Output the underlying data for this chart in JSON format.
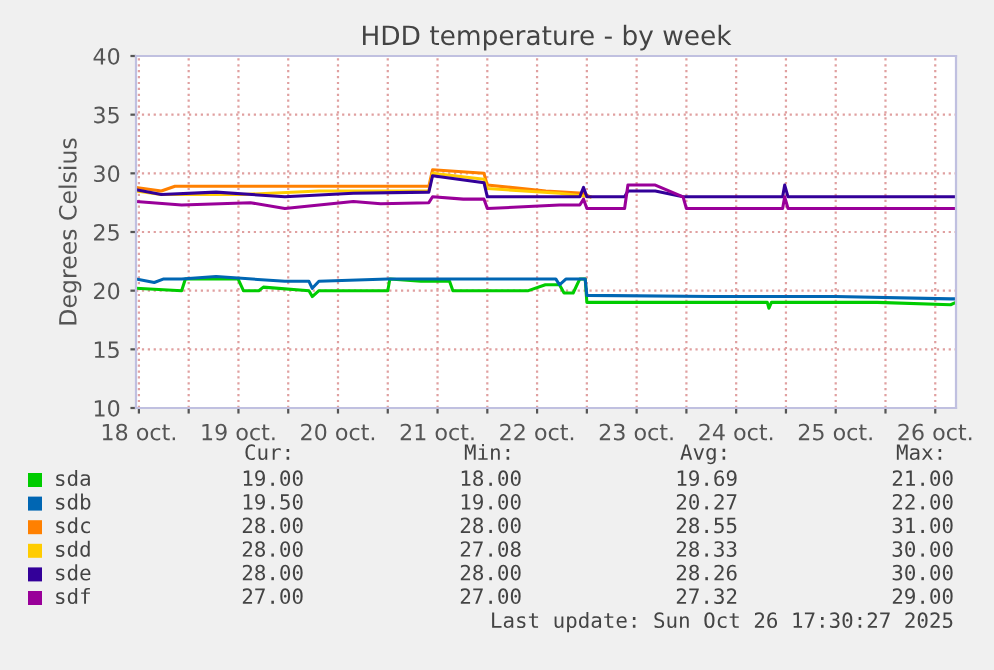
{
  "chart_data": {
    "type": "line",
    "title": "HDD temperature - by week",
    "ylabel": "Degrees Celsius",
    "xlim": [
      "2025-10-18T11:18",
      "2025-10-26T17:00"
    ],
    "xticks": [
      {
        "value": "2025-10-18T12:00",
        "label": "18 oct."
      },
      {
        "value": "2025-10-19T00:00",
        "label": null
      },
      {
        "value": "2025-10-19T12:00",
        "label": "19 oct."
      },
      {
        "value": "2025-10-20T00:00",
        "label": null
      },
      {
        "value": "2025-10-20T12:00",
        "label": "20 oct."
      },
      {
        "value": "2025-10-21T00:00",
        "label": null
      },
      {
        "value": "2025-10-21T12:00",
        "label": "21 oct."
      },
      {
        "value": "2025-10-22T00:00",
        "label": null
      },
      {
        "value": "2025-10-22T12:00",
        "label": "22 oct."
      },
      {
        "value": "2025-10-23T00:00",
        "label": null
      },
      {
        "value": "2025-10-23T12:00",
        "label": "23 oct."
      },
      {
        "value": "2025-10-24T00:00",
        "label": null
      },
      {
        "value": "2025-10-24T12:00",
        "label": "24 oct."
      },
      {
        "value": "2025-10-25T00:00",
        "label": null
      },
      {
        "value": "2025-10-25T12:00",
        "label": "25 oct."
      },
      {
        "value": "2025-10-26T00:00",
        "label": null
      },
      {
        "value": "2025-10-26T12:00",
        "label": "26 oct."
      }
    ],
    "ylim": [
      10,
      40
    ],
    "yticks": [
      10,
      15,
      20,
      25,
      30,
      35,
      40
    ],
    "grid": true,
    "legend": "bottom",
    "series": [
      {
        "name": "sda",
        "color": "#00cc00",
        "x": [
          "2025-10-18T11:18",
          "2025-10-18T22:18",
          "2025-10-18T23:12",
          "2025-10-19T11:54",
          "2025-10-19T13:12",
          "2025-10-19T16:54",
          "2025-10-19T18:00",
          "2025-10-20T05:00",
          "2025-10-20T05:48",
          "2025-10-20T07:24",
          "2025-10-21T00:00",
          "2025-10-21T00:30",
          "2025-10-21T08:00",
          "2025-10-21T14:54",
          "2025-10-21T15:42",
          "2025-10-22T09:54",
          "2025-10-22T14:00",
          "2025-10-22T17:24",
          "2025-10-22T18:30",
          "2025-10-22T20:42",
          "2025-10-22T22:18",
          "2025-10-22T23:36",
          "2025-10-23T00:00",
          "2025-10-24T06:00",
          "2025-10-24T19:30",
          "2025-10-24T19:54",
          "2025-10-24T20:30",
          "2025-10-25T22:00",
          "2025-10-26T15:42",
          "2025-10-26T17:00"
        ],
        "values": [
          20.2,
          20.0,
          21.0,
          21.0,
          20.0,
          20.0,
          20.3,
          20.0,
          19.5,
          20.0,
          20.0,
          21.0,
          20.8,
          20.8,
          20.0,
          20.0,
          20.5,
          20.5,
          19.8,
          19.8,
          21.0,
          21.0,
          19.0,
          19.0,
          19.0,
          18.5,
          19.0,
          19.0,
          18.8,
          19.0
        ]
      },
      {
        "name": "sdb",
        "color": "#0066b3",
        "x": [
          "2025-10-18T11:18",
          "2025-10-18T15:42",
          "2025-10-18T18:00",
          "2025-10-18T22:18",
          "2025-10-19T06:36",
          "2025-10-19T23:12",
          "2025-10-20T05:00",
          "2025-10-20T05:48",
          "2025-10-20T07:24",
          "2025-10-21T00:00",
          "2025-10-22T16:30",
          "2025-10-22T17:24",
          "2025-10-22T19:00",
          "2025-10-22T23:36",
          "2025-10-23T00:00",
          "2025-10-24T06:00",
          "2025-10-25T12:00",
          "2025-10-26T15:42",
          "2025-10-26T17:00"
        ],
        "values": [
          21.0,
          20.7,
          21.0,
          21.0,
          21.2,
          20.8,
          20.8,
          20.2,
          20.8,
          21.0,
          21.0,
          20.5,
          21.0,
          21.0,
          19.6,
          19.5,
          19.5,
          19.3,
          19.3
        ]
      },
      {
        "name": "sdc",
        "color": "#ff8000",
        "x": [
          "2025-10-18T11:18",
          "2025-10-18T17:24",
          "2025-10-18T20:42",
          "2025-10-21T09:54",
          "2025-10-21T10:48",
          "2025-10-21T23:12",
          "2025-10-22T00:00",
          "2025-10-22T14:06",
          "2025-10-22T23:12",
          "2025-10-23T00:48"
        ],
        "values": [
          28.8,
          28.5,
          28.9,
          28.9,
          30.3,
          30.0,
          29.0,
          28.5,
          28.3,
          28.0
        ]
      },
      {
        "name": "sdd",
        "color": "#ffcc00",
        "x": [
          "2025-10-18T11:18",
          "2025-10-18T17:24",
          "2025-10-19T13:12",
          "2025-10-20T07:24",
          "2025-10-21T09:54",
          "2025-10-21T10:48",
          "2025-10-21T23:12",
          "2025-10-22T00:00",
          "2025-10-22T17:24",
          "2025-10-23T00:48"
        ],
        "values": [
          28.5,
          28.2,
          28.2,
          28.5,
          28.5,
          30.0,
          29.5,
          28.7,
          28.3,
          28.0
        ]
      },
      {
        "name": "sde",
        "color": "#330099",
        "x": [
          "2025-10-18T11:18",
          "2025-10-18T17:24",
          "2025-10-19T06:36",
          "2025-10-19T23:12",
          "2025-10-20T15:42",
          "2025-10-21T09:54",
          "2025-10-21T10:48",
          "2025-10-21T23:12",
          "2025-10-22T00:00",
          "2025-10-22T22:18",
          "2025-10-22T23:12",
          "2025-10-23T00:00",
          "2025-10-23T09:06",
          "2025-10-23T09:54",
          "2025-10-23T16:30",
          "2025-10-23T23:12",
          "2025-10-24T23:12",
          "2025-10-24T23:42",
          "2025-10-25T00:30",
          "2025-10-26T17:00"
        ],
        "values": [
          28.6,
          28.2,
          28.4,
          28.0,
          28.3,
          28.4,
          29.8,
          29.2,
          28.0,
          28.0,
          28.8,
          28.0,
          28.0,
          28.5,
          28.5,
          28.0,
          28.0,
          29.0,
          28.0,
          28.0
        ]
      },
      {
        "name": "sdf",
        "color": "#990099",
        "x": [
          "2025-10-18T11:18",
          "2025-10-18T22:18",
          "2025-10-19T14:54",
          "2025-10-19T23:12",
          "2025-10-20T15:42",
          "2025-10-20T22:18",
          "2025-10-21T09:54",
          "2025-10-21T10:48",
          "2025-10-21T18:12",
          "2025-10-21T23:12",
          "2025-10-22T00:00",
          "2025-10-22T17:24",
          "2025-10-22T22:18",
          "2025-10-22T23:12",
          "2025-10-23T00:00",
          "2025-10-23T09:06",
          "2025-10-23T09:54",
          "2025-10-23T16:30",
          "2025-10-23T23:12",
          "2025-10-24T00:00",
          "2025-10-24T23:12",
          "2025-10-24T23:42",
          "2025-10-25T00:30",
          "2025-10-26T17:00"
        ],
        "values": [
          27.6,
          27.3,
          27.5,
          27.0,
          27.6,
          27.4,
          27.5,
          28.0,
          27.8,
          27.8,
          27.0,
          27.3,
          27.3,
          27.8,
          27.0,
          27.0,
          29.0,
          29.0,
          28.0,
          27.0,
          27.0,
          28.0,
          27.0,
          27.0
        ]
      }
    ],
    "annotations": [
      "Cur:",
      "Min:",
      "Avg:",
      "Max:",
      "19.00",
      "18.00",
      "19.69",
      "21.00",
      "19.50",
      "19.00",
      "20.27",
      "22.00",
      "28.00",
      "28.00",
      "28.55",
      "31.00",
      "28.00",
      "27.08",
      "28.33",
      "30.00",
      "28.00",
      "28.00",
      "28.26",
      "30.00",
      "27.00",
      "27.00",
      "27.32",
      "29.00",
      "Last update: Sun Oct 26 17:30:27 2025"
    ]
  }
}
